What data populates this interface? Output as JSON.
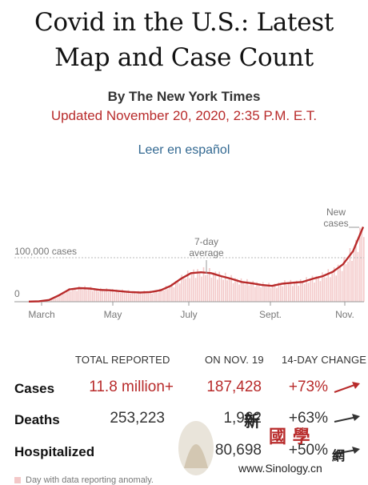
{
  "header": {
    "title_line1": "Covid in the U.S.: Latest",
    "title_line2": "Map and Case Count",
    "byline": "By The New York Times",
    "updated": "Updated November 20, 2020, 2:35 P.M. E.T.",
    "spanish_link": "Leer en español"
  },
  "chart_data": {
    "type": "area",
    "title": "",
    "xlabel": "",
    "ylabel": "",
    "x_tick_labels": [
      "March",
      "May",
      "July",
      "Sept.",
      "Nov."
    ],
    "y_tick_labels": [
      "100,000 cases",
      "0"
    ],
    "ylim": [
      0,
      190000
    ],
    "annotations": [
      "7-day average",
      "New cases"
    ],
    "series": [
      {
        "values": [
          400,
          1000,
          4000,
          15000,
          28000,
          31000,
          30000,
          27000,
          26000,
          24000,
          22000,
          21000,
          22000,
          26000,
          36000,
          52000,
          65000,
          67000,
          65000,
          58000,
          52000,
          45000,
          42000,
          38000,
          36000,
          41000,
          43000,
          45000,
          52000,
          58000,
          68000,
          85000,
          115000,
          170000
        ],
        "start": "2020-03-01",
        "end": "2020-11-19"
      }
    ],
    "colors": {
      "line": "#b82b2b",
      "bars": "#f3c8c8"
    }
  },
  "table": {
    "headers": {
      "total": "TOTAL REPORTED",
      "day": "ON NOV. 19",
      "change": "14-DAY CHANGE"
    },
    "rows": [
      {
        "label": "Cases",
        "total": "11.8 million+",
        "day": "187,428",
        "change": "+73%",
        "trend": [
          2,
          3,
          4,
          6,
          9
        ]
      },
      {
        "label": "Deaths",
        "total": "253,223",
        "day": "1,962",
        "change": "+63%",
        "trend": [
          2,
          3,
          4,
          5,
          7
        ]
      },
      {
        "label": "Hospitalized",
        "total": "",
        "day": "80,698",
        "change": "+50%",
        "trend": [
          2,
          3,
          4,
          5,
          6
        ]
      }
    ]
  },
  "footer": {
    "legend_text": "Day with data reporting anomaly."
  },
  "watermark": {
    "characters": "新 國 學 網",
    "site": "www.Sinology.cn"
  }
}
